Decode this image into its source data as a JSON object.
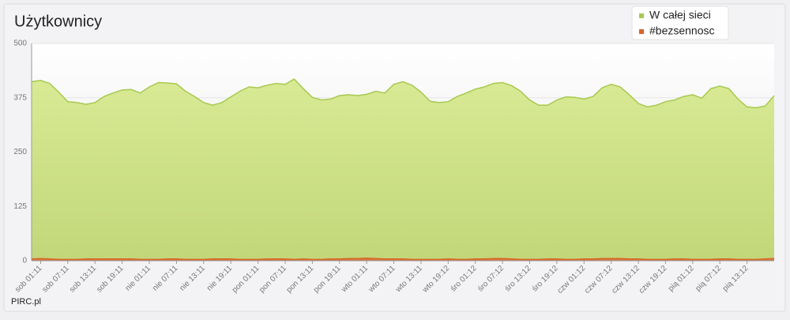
{
  "chart_data": {
    "type": "area",
    "title": "Użytkownicy",
    "footer": "PIRC.pl",
    "categories": [
      null,
      "sob 01:11",
      null,
      null,
      "sob 07:11",
      null,
      null,
      "sob 13:11",
      null,
      null,
      "sob 19:11",
      null,
      null,
      "nie 01:11",
      null,
      null,
      "nie 07:11",
      null,
      null,
      "nie 13:11",
      null,
      null,
      "nie 19:11",
      null,
      null,
      "pon 01:11",
      null,
      null,
      "pon 07:11",
      null,
      null,
      "pon 13:11",
      null,
      null,
      "pon 19:11",
      null,
      null,
      "wto 01:11",
      null,
      null,
      "wto 07:11",
      null,
      null,
      "wto 13:11",
      null,
      null,
      "wto 19:12",
      null,
      null,
      "śro 01:12",
      null,
      null,
      "śro 07:12",
      null,
      null,
      "śro 13:12",
      null,
      null,
      "śro 19:12",
      null,
      null,
      "czw 01:12",
      null,
      null,
      "czw 07:12",
      null,
      null,
      "czw 13:12",
      null,
      null,
      "czw 19:12",
      null,
      null,
      "pią 01:12",
      null,
      null,
      "pią 07:12",
      null,
      null,
      "pią 13:12",
      null,
      null,
      null
    ],
    "series": [
      {
        "name": "W całej sieci",
        "color": "#a8c94f",
        "values": [
          412,
          415,
          408,
          388,
          366,
          364,
          360,
          364,
          378,
          386,
          393,
          394,
          386,
          400,
          410,
          409,
          407,
          390,
          378,
          364,
          358,
          364,
          377,
          390,
          400,
          398,
          404,
          408,
          406,
          418,
          396,
          376,
          370,
          372,
          380,
          382,
          380,
          383,
          390,
          386,
          406,
          412,
          404,
          388,
          367,
          364,
          366,
          378,
          386,
          395,
          400,
          408,
          410,
          403,
          390,
          370,
          358,
          358,
          370,
          377,
          376,
          372,
          378,
          398,
          406,
          400,
          382,
          362,
          354,
          358,
          366,
          370,
          378,
          382,
          374,
          396,
          402,
          396,
          372,
          354,
          352,
          356,
          380
        ]
      },
      {
        "name": "#bezsennosc",
        "color": "#d9642a",
        "values": [
          4,
          5,
          4,
          3,
          3,
          3,
          4,
          4,
          4,
          4,
          4,
          4,
          3,
          3,
          3,
          4,
          4,
          3,
          3,
          3,
          4,
          4,
          4,
          3,
          3,
          3,
          4,
          4,
          4,
          3,
          4,
          3,
          3,
          4,
          4,
          5,
          5,
          6,
          5,
          4,
          4,
          4,
          3,
          3,
          3,
          3,
          4,
          3,
          3,
          4,
          4,
          5,
          5,
          4,
          3,
          3,
          3,
          4,
          4,
          3,
          3,
          4,
          4,
          5,
          5,
          5,
          4,
          4,
          3,
          3,
          3,
          4,
          4,
          3,
          3,
          3,
          4,
          4,
          3,
          3,
          3,
          4,
          5
        ]
      }
    ],
    "ylim": [
      0,
      500
    ],
    "yticks": [
      0,
      125,
      250,
      375,
      500
    ],
    "grid": true,
    "legend": "top-right"
  }
}
